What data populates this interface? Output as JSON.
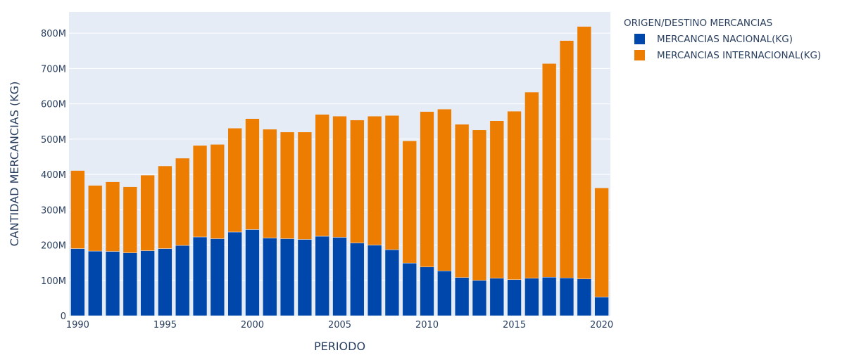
{
  "chart_data": {
    "type": "bar",
    "stacked": true,
    "x": [
      1990,
      1991,
      1992,
      1993,
      1994,
      1995,
      1996,
      1997,
      1998,
      1999,
      2000,
      2001,
      2002,
      2003,
      2004,
      2005,
      2006,
      2007,
      2008,
      2009,
      2010,
      2011,
      2012,
      2013,
      2014,
      2015,
      2016,
      2017,
      2018,
      2019,
      2020
    ],
    "series": [
      {
        "name": "MERCANCIAS NACIONAL(KG)",
        "color": "#0047ab",
        "values": [
          190,
          183,
          182,
          178,
          184,
          190,
          199,
          223,
          218,
          237,
          244,
          220,
          218,
          216,
          225,
          222,
          206,
          200,
          187,
          149,
          138,
          127,
          108,
          100,
          106,
          102,
          106,
          109,
          107,
          104,
          53
        ]
      },
      {
        "name": "MERCANCIAS INTERNACIONAL(KG)",
        "color": "#ed7d00",
        "values": [
          221,
          186,
          197,
          187,
          214,
          234,
          247,
          259,
          267,
          294,
          314,
          308,
          302,
          304,
          345,
          343,
          348,
          365,
          380,
          346,
          440,
          458,
          434,
          426,
          446,
          477,
          527,
          605,
          672,
          715,
          309
        ]
      }
    ],
    "unit": "M",
    "xlabel": "PERIODO",
    "ylabel": "CANTIDAD MERCANCIAS (KG)",
    "ylim": [
      0,
      860
    ],
    "xlim": [
      1989.5,
      2020.5
    ],
    "yticks": [
      0,
      100,
      200,
      300,
      400,
      500,
      600,
      700,
      800
    ],
    "ytick_labels": [
      "0",
      "100M",
      "200M",
      "300M",
      "400M",
      "500M",
      "600M",
      "700M",
      "800M"
    ],
    "xticks": [
      1990,
      1995,
      2000,
      2005,
      2010,
      2015,
      2020
    ],
    "xtick_labels": [
      "1990",
      "1995",
      "2000",
      "2005",
      "2010",
      "2015",
      "2020"
    ],
    "legend_title": "ORIGEN/DESTINO MERCANCIAS",
    "legend_position": "right",
    "grid": true,
    "plot_background": "#e5ecf6"
  }
}
